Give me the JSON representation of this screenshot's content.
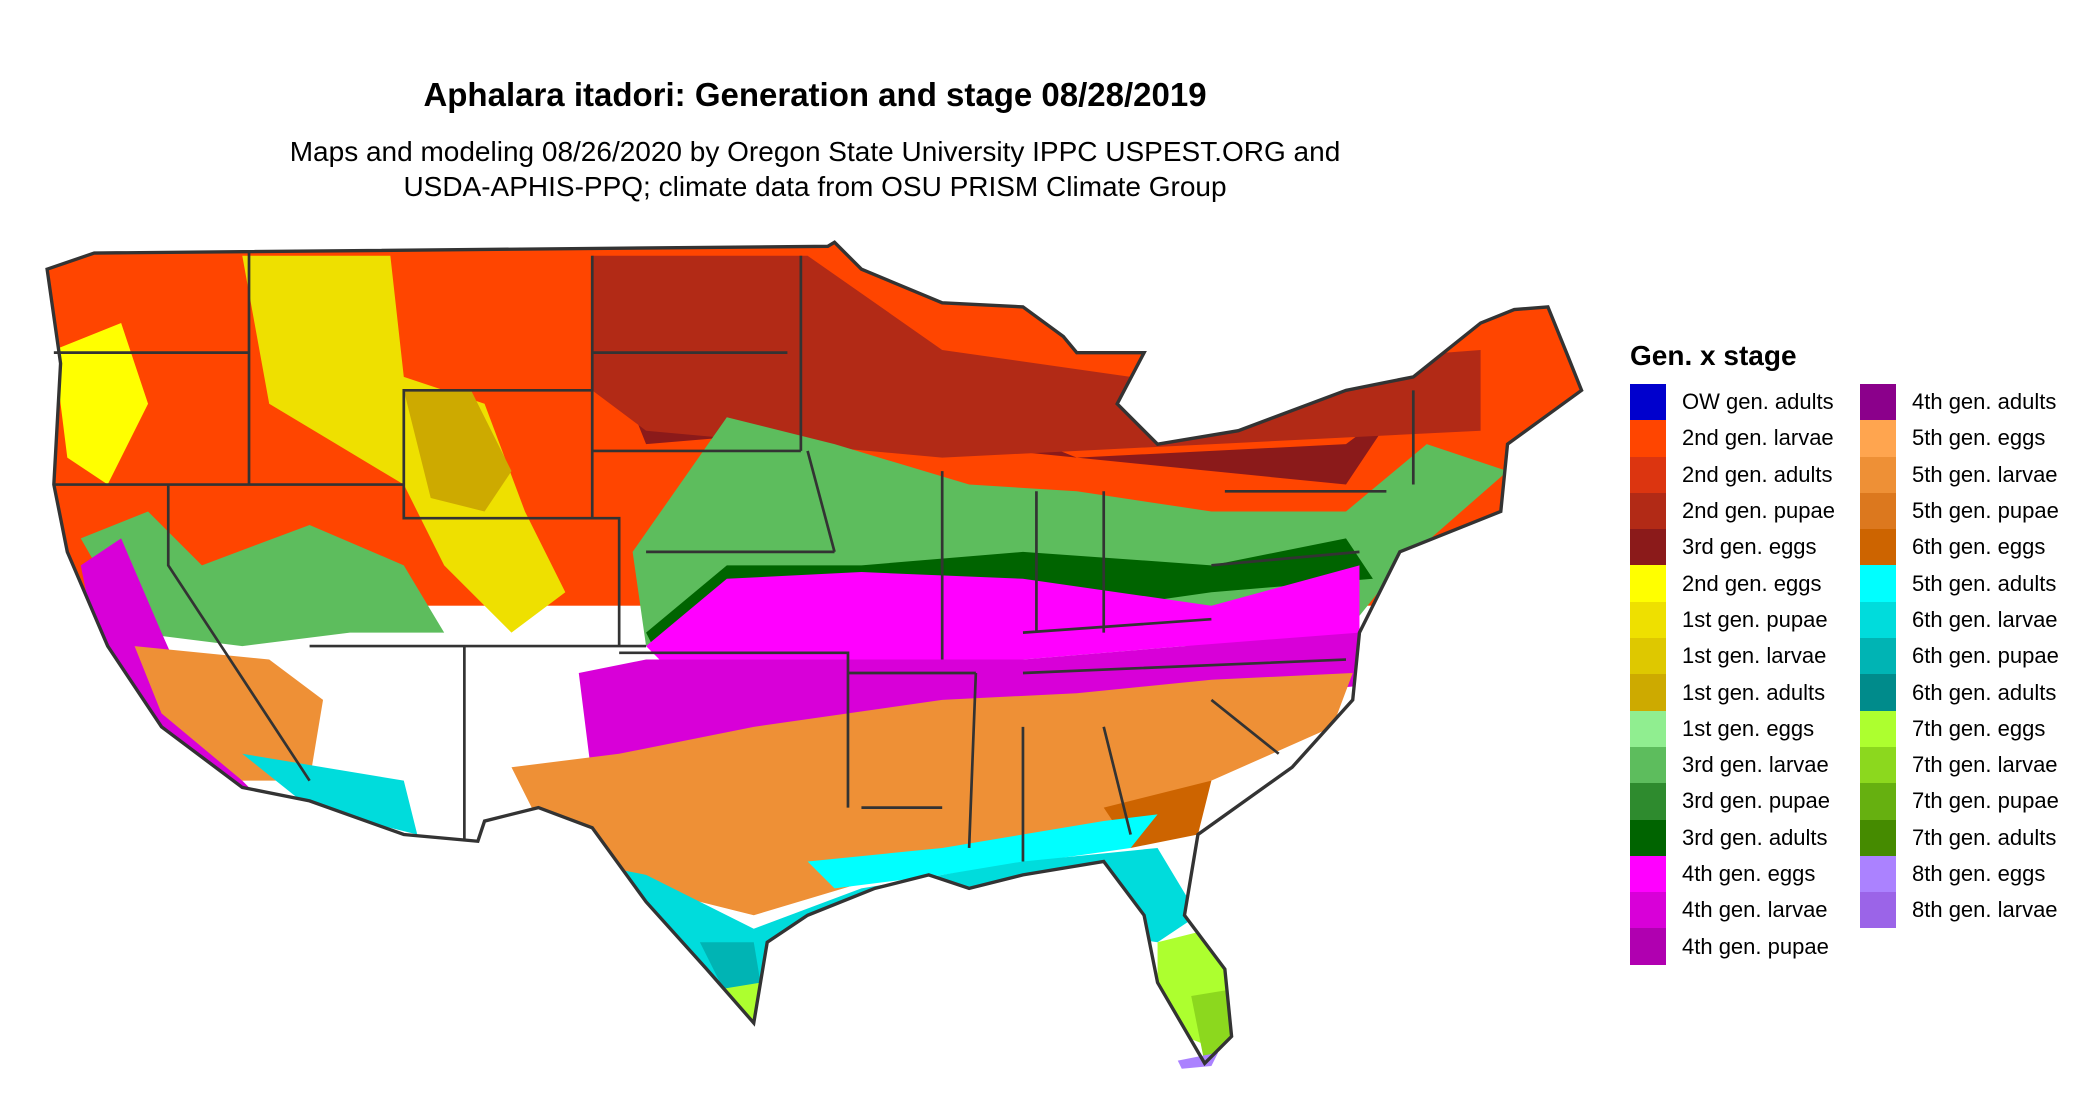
{
  "title": "Aphalara itadori: Generation and stage 08/28/2019",
  "subtitle_line1": "Maps and modeling 08/26/2020 by Oregon State University IPPC USPEST.ORG and",
  "subtitle_line2": "USDA-APHIS-PPQ; climate data from OSU PRISM Climate Group",
  "legend": {
    "title": "Gen. x stage",
    "columns": [
      [
        {
          "label": "OW gen. adults",
          "color": "#0000CD"
        },
        {
          "label": "2nd gen. larvae",
          "color": "#FF4500"
        },
        {
          "label": "2nd gen. adults",
          "color": "#DC3510"
        },
        {
          "label": "2nd gen. pupae",
          "color": "#B22A16"
        },
        {
          "label": "3rd gen. eggs",
          "color": "#8B1A1A"
        },
        {
          "label": "2nd gen. eggs",
          "color": "#FFFF00"
        },
        {
          "label": "1st gen. pupae",
          "color": "#EEE000"
        },
        {
          "label": "1st gen. larvae",
          "color": "#DEC800"
        },
        {
          "label": "1st gen. adults",
          "color": "#CDAA00"
        },
        {
          "label": "1st gen. eggs",
          "color": "#90EE90"
        },
        {
          "label": "3rd gen. larvae",
          "color": "#5DBD5D"
        },
        {
          "label": "3rd gen. pupae",
          "color": "#2E8B2E"
        },
        {
          "label": "3rd gen. adults",
          "color": "#006400"
        },
        {
          "label": "4th gen. eggs",
          "color": "#FF00FF"
        },
        {
          "label": "4th gen. larvae",
          "color": "#D800D8"
        },
        {
          "label": "4th gen. pupae",
          "color": "#B000B0"
        }
      ],
      [
        {
          "label": "4th gen. adults",
          "color": "#8B008B"
        },
        {
          "label": "5th gen. eggs",
          "color": "#FFA54F"
        },
        {
          "label": "5th gen. larvae",
          "color": "#EE9036"
        },
        {
          "label": "5th gen. pupae",
          "color": "#DC781E"
        },
        {
          "label": "6th gen. eggs",
          "color": "#CD6400"
        },
        {
          "label": "5th gen. adults",
          "color": "#00FFFF"
        },
        {
          "label": "6th gen. larvae",
          "color": "#00DCDC"
        },
        {
          "label": "6th gen. pupae",
          "color": "#00B4B4"
        },
        {
          "label": "6th gen. adults",
          "color": "#008B8B"
        },
        {
          "label": "7th gen. eggs",
          "color": "#ADFF2F"
        },
        {
          "label": "7th gen. larvae",
          "color": "#8CD81E"
        },
        {
          "label": "7th gen. pupae",
          "color": "#66B010"
        },
        {
          "label": "7th gen. adults",
          "color": "#458B00"
        },
        {
          "label": "8th gen. eggs",
          "color": "#AB82FF"
        },
        {
          "label": "8th gen. larvae",
          "color": "#9B64E8"
        }
      ]
    ]
  }
}
